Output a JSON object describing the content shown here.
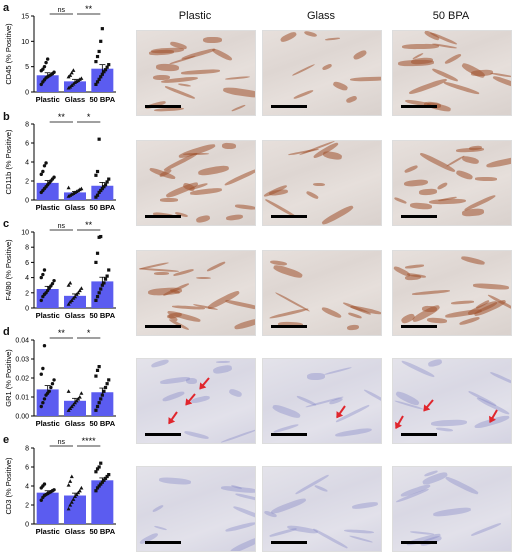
{
  "figure": {
    "columns": [
      "Plastic",
      "Glass",
      "50 BPA"
    ],
    "panel_letters": [
      "a",
      "b",
      "c",
      "d",
      "e"
    ]
  },
  "colors": {
    "bar": "#5b5cf0",
    "point": "#111111",
    "arrow": "#e0262d",
    "dab": "#a0522d",
    "hematoxylin": "#7c7fc4"
  },
  "chart_data": [
    {
      "type": "bar",
      "panel": "a",
      "ylabel": "CD45 (% Positive)",
      "categories": [
        "Plastic",
        "Glass",
        "50 BPA"
      ],
      "values": [
        3.3,
        2.1,
        4.6
      ],
      "errors": [
        0.5,
        0.4,
        0.8
      ],
      "ylim": [
        0,
        15
      ],
      "yticks": [
        0,
        5,
        10,
        15
      ],
      "ytick_labels": [
        "0",
        "5",
        "10",
        "15"
      ],
      "points": [
        [
          1.5,
          2,
          2.4,
          2.8,
          3,
          3.2,
          3.4,
          3.6,
          3.9,
          4.2,
          4.5,
          5,
          5.8,
          6.5
        ],
        [
          0.8,
          1,
          1.3,
          1.6,
          1.9,
          2.1,
          2.3,
          2.5,
          2.7,
          3,
          3.3,
          3.8,
          4.3
        ],
        [
          1.5,
          2,
          2.5,
          3,
          3.5,
          4,
          4.4,
          4.9,
          5.4,
          6,
          7,
          8,
          10,
          12.5
        ]
      ],
      "significance": [
        {
          "from": 0,
          "to": 1,
          "label": "ns"
        },
        {
          "from": 1,
          "to": 2,
          "label": "**"
        }
      ]
    },
    {
      "type": "bar",
      "panel": "b",
      "ylabel": "CD11b (% Positive)",
      "categories": [
        "Plastic",
        "Glass",
        "50 BPA"
      ],
      "values": [
        1.8,
        0.8,
        1.5
      ],
      "errors": [
        0.25,
        0.1,
        0.35
      ],
      "ylim": [
        0,
        8
      ],
      "yticks": [
        0,
        2,
        4,
        6,
        8
      ],
      "ytick_labels": [
        "0",
        "2",
        "4",
        "6",
        "8"
      ],
      "points": [
        [
          0.8,
          1,
          1.2,
          1.4,
          1.6,
          1.8,
          2,
          2.2,
          2.4,
          2.7,
          3,
          3.6,
          3.9
        ],
        [
          0.4,
          0.5,
          0.6,
          0.7,
          0.8,
          0.9,
          1,
          1.1,
          1.2,
          1.3
        ],
        [
          0.3,
          0.5,
          0.8,
          1,
          1.2,
          1.4,
          1.6,
          1.9,
          2.2,
          2.6,
          3,
          6.4
        ]
      ],
      "significance": [
        {
          "from": 0,
          "to": 1,
          "label": "**"
        },
        {
          "from": 1,
          "to": 2,
          "label": "*"
        }
      ]
    },
    {
      "type": "bar",
      "panel": "c",
      "ylabel": "F4/80 (% Positive)",
      "categories": [
        "Plastic",
        "Glass",
        "50 BPA"
      ],
      "values": [
        2.5,
        1.6,
        3.5
      ],
      "errors": [
        0.35,
        0.25,
        0.55
      ],
      "ylim": [
        0,
        10
      ],
      "yticks": [
        0,
        2,
        4,
        6,
        8,
        10
      ],
      "ytick_labels": [
        "0",
        "2",
        "4",
        "6",
        "8",
        "10"
      ],
      "points": [
        [
          1,
          1.5,
          1.8,
          2,
          2.3,
          2.6,
          2.9,
          3.2,
          3.6,
          4,
          4.4,
          5
        ],
        [
          0.5,
          0.8,
          1,
          1.3,
          1.5,
          1.8,
          2,
          2.3,
          2.6,
          3,
          3.3
        ],
        [
          1,
          1.5,
          2,
          2.5,
          3,
          3.3,
          3.8,
          4.2,
          5,
          6,
          7.2,
          9.3,
          9.4
        ]
      ],
      "significance": [
        {
          "from": 0,
          "to": 1,
          "label": "ns"
        },
        {
          "from": 1,
          "to": 2,
          "label": "**"
        }
      ]
    },
    {
      "type": "bar",
      "panel": "d",
      "ylabel": "GR1 (% Positive)",
      "categories": [
        "Plastic",
        "Glass",
        "50 BPA"
      ],
      "values": [
        0.014,
        0.008,
        0.0125
      ],
      "errors": [
        0.002,
        0.0013,
        0.0022
      ],
      "ylim": [
        0,
        0.04
      ],
      "yticks": [
        0,
        0.01,
        0.02,
        0.03,
        0.04
      ],
      "ytick_labels": [
        "0.00",
        "0.01",
        "0.02",
        "0.03",
        "0.04"
      ],
      "points": [
        [
          0.005,
          0.007,
          0.009,
          0.011,
          0.012,
          0.013,
          0.015,
          0.017,
          0.019,
          0.022,
          0.025,
          0.037
        ],
        [
          0.003,
          0.004,
          0.005,
          0.006,
          0.007,
          0.008,
          0.009,
          0.01,
          0.012,
          0.013
        ],
        [
          0.003,
          0.005,
          0.007,
          0.009,
          0.011,
          0.013,
          0.015,
          0.017,
          0.019,
          0.021,
          0.024,
          0.026
        ]
      ],
      "significance": [
        {
          "from": 0,
          "to": 1,
          "label": "**"
        },
        {
          "from": 1,
          "to": 2,
          "label": "*"
        }
      ]
    },
    {
      "type": "bar",
      "panel": "e",
      "ylabel": "CD3 (% Positive)",
      "categories": [
        "Plastic",
        "Glass",
        "50 BPA"
      ],
      "values": [
        3.3,
        3.0,
        4.6
      ],
      "errors": [
        0.2,
        0.25,
        0.25
      ],
      "ylim": [
        0,
        8
      ],
      "yticks": [
        0,
        2,
        4,
        6,
        8
      ],
      "ytick_labels": [
        "0",
        "2",
        "4",
        "6",
        "8"
      ],
      "points": [
        [
          2.5,
          2.8,
          3,
          3.1,
          3.2,
          3.3,
          3.4,
          3.5,
          3.6,
          3.8,
          4,
          4.2
        ],
        [
          1.6,
          2,
          2.3,
          2.6,
          2.9,
          3.1,
          3.3,
          3.5,
          3.8,
          4.1,
          4.5,
          5
        ],
        [
          3.5,
          3.8,
          4,
          4.2,
          4.4,
          4.6,
          4.8,
          5,
          5.2,
          5.5,
          5.8,
          6,
          6.4
        ]
      ],
      "significance": [
        {
          "from": 0,
          "to": 1,
          "label": "ns"
        },
        {
          "from": 1,
          "to": 2,
          "label": "****"
        }
      ]
    }
  ]
}
